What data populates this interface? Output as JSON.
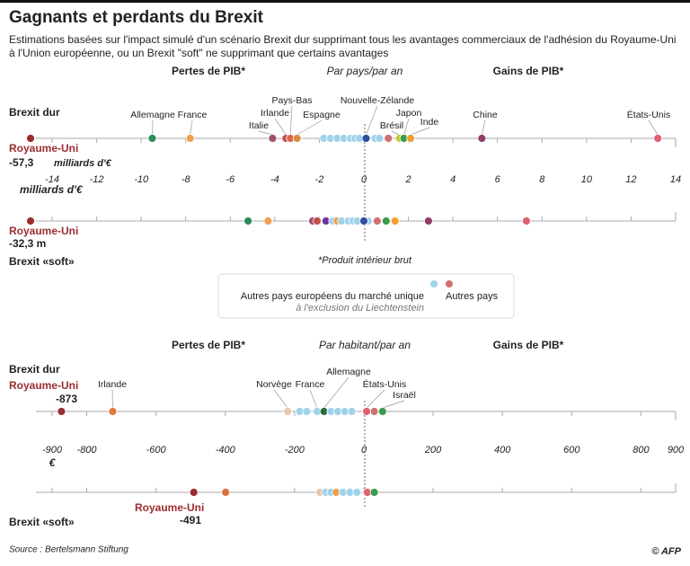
{
  "title": "Gagnants et perdants du Brexit",
  "subtitle_lines": [
    "Estimations basées sur l'impact simulé d'un scénario Brexit dur supprimant tous les avantages commerciaux de l'adhésion du Royaume-Uni",
    "à l'Union européenne, ou un Brexit \"soft\" ne supprimant que certains avantages"
  ],
  "footnote": "*Produit intérieur brut",
  "legend": {
    "eu_label": "Autres pays européens du marché unique",
    "eu_note": "à l'exclusion du Liechtenstein",
    "eu_color": "#9fd3ea",
    "other_label": "Autres pays",
    "other_color": "#d07070"
  },
  "source": "Source : Bertelsmann Stiftung",
  "credit": "© AFP",
  "chart_data": [
    {
      "type": "dot",
      "loss_label": "Pertes de PIB*",
      "period": "Par pays/par an",
      "gain_label": "Gains de PIB*",
      "x_label": "milliards d'€",
      "xlim": [
        -14,
        14
      ],
      "xticks": [
        -14,
        -12,
        -10,
        -8,
        -6,
        -4,
        -2,
        0,
        2,
        4,
        6,
        8,
        10,
        12,
        14
      ],
      "rows": [
        {
          "label": "Brexit dur",
          "uk": {
            "name": "Royaume-Uni",
            "value": -57.3,
            "value_label": "-57,3",
            "unit": "milliards d'€",
            "color": "#9b2d30"
          },
          "points": [
            {
              "name": "Allemagne",
              "value": -9.5,
              "color": "#2e8b57"
            },
            {
              "name": "France",
              "value": -7.8,
              "color": "#f0a050"
            },
            {
              "name": "Italie",
              "value": -4.1,
              "color": "#a0506e"
            },
            {
              "name": "Irlande",
              "value": -3.5,
              "color": "#c0504d"
            },
            {
              "name": "Pays-Bas",
              "value": -3.3,
              "color": "#d9664a"
            },
            {
              "name": "Espagne",
              "value": -3.0,
              "color": "#d98a40"
            },
            {
              "value": -1.8,
              "color": "#9fd3ea"
            },
            {
              "value": -1.5,
              "color": "#9fd3ea"
            },
            {
              "value": -1.2,
              "color": "#9fd3ea"
            },
            {
              "value": -0.9,
              "color": "#9fd3ea"
            },
            {
              "value": -0.6,
              "color": "#9fd3ea"
            },
            {
              "value": -0.4,
              "color": "#9fd3ea"
            },
            {
              "value": -0.2,
              "color": "#9fd3ea"
            },
            {
              "value": 0.5,
              "color": "#9fd3ea"
            },
            {
              "value": 0.7,
              "color": "#9fd3ea"
            },
            {
              "name": "Nouvelle-Zélande",
              "value": 0.1,
              "color": "#2f4f9f"
            },
            {
              "value": 1.1,
              "color": "#d07070"
            },
            {
              "name": "Brésil",
              "value": 1.6,
              "color": "#c8c83c"
            },
            {
              "name": "Japon",
              "value": 1.8,
              "color": "#3a9a4a"
            },
            {
              "name": "Inde",
              "value": 2.1,
              "color": "#f0a030"
            },
            {
              "name": "Chine",
              "value": 5.3,
              "color": "#8e3e6a"
            },
            {
              "name": "États-Unis",
              "value": 13.2,
              "color": "#e06070"
            }
          ]
        },
        {
          "label": "Brexit «soft»",
          "uk": {
            "name": "Royaume-Uni",
            "value": -32.3,
            "value_label": "-32,3 m",
            "color": "#9b2d30"
          },
          "points": [
            {
              "value": -5.2,
              "color": "#2e8b57"
            },
            {
              "value": -4.3,
              "color": "#f0a050"
            },
            {
              "value": -2.3,
              "color": "#a0506e"
            },
            {
              "value": -2.1,
              "color": "#c0504d"
            },
            {
              "value": -1.7,
              "color": "#7030a0"
            },
            {
              "value": -1.4,
              "color": "#9fd3ea"
            },
            {
              "value": -1.2,
              "color": "#f0a050"
            },
            {
              "value": -1.0,
              "color": "#9fd3ea"
            },
            {
              "value": -0.7,
              "color": "#9fd3ea"
            },
            {
              "value": -0.5,
              "color": "#9fd3ea"
            },
            {
              "value": -0.3,
              "color": "#9fd3ea"
            },
            {
              "value": 0.2,
              "color": "#9fd3ea"
            },
            {
              "value": 0.0,
              "color": "#2f4f9f"
            },
            {
              "value": 0.6,
              "color": "#d07070"
            },
            {
              "value": 1.0,
              "color": "#3a9a4a"
            },
            {
              "value": 1.4,
              "color": "#f0a030"
            },
            {
              "value": 2.9,
              "color": "#8e3e6a"
            },
            {
              "value": 7.3,
              "color": "#e06070"
            }
          ]
        }
      ]
    },
    {
      "type": "dot",
      "loss_label": "Pertes de PIB*",
      "period": "Par habitant/par an",
      "gain_label": "Gains de PIB*",
      "x_label": "€",
      "xlim": [
        -900,
        900
      ],
      "xticks": [
        -900,
        -800,
        -600,
        -400,
        -200,
        0,
        200,
        400,
        600,
        800,
        900
      ],
      "rows": [
        {
          "label": "Brexit dur",
          "uk": {
            "name": "Royaume-Uni",
            "value": -873,
            "color": "#9b2d30"
          },
          "points": [
            {
              "name": "Irlande",
              "value": -725,
              "color": "#e07a40"
            },
            {
              "name": "Norvège",
              "value": -220,
              "color": "#e8c8b0"
            },
            {
              "value": -185,
              "color": "#9fd3ea"
            },
            {
              "value": -165,
              "color": "#9fd3ea"
            },
            {
              "name": "France",
              "value": -135,
              "color": "#9fd3ea"
            },
            {
              "name": "Allemagne",
              "value": -115,
              "color": "#2e6b3e"
            },
            {
              "value": -95,
              "color": "#9fd3ea"
            },
            {
              "value": -75,
              "color": "#9fd3ea"
            },
            {
              "value": -55,
              "color": "#9fd3ea"
            },
            {
              "value": -35,
              "color": "#9fd3ea"
            },
            {
              "value": 30,
              "color": "#d07070"
            },
            {
              "name": "États-Unis",
              "value": 8,
              "color": "#e06070"
            },
            {
              "name": "Israël",
              "value": 54,
              "color": "#3a9a4a"
            }
          ]
        },
        {
          "label": "Brexit «soft»",
          "uk": {
            "name": "Royaume-Uni",
            "value": -491,
            "color": "#9b2d30"
          },
          "points": [
            {
              "value": -399,
              "color": "#e07040"
            },
            {
              "value": -127,
              "color": "#e8c8b0"
            },
            {
              "value": -110,
              "color": "#9fd3ea"
            },
            {
              "value": -95,
              "color": "#9fd3ea"
            },
            {
              "value": -80,
              "color": "#f0a050"
            },
            {
              "value": -60,
              "color": "#9fd3ea"
            },
            {
              "value": -40,
              "color": "#9fd3ea"
            },
            {
              "value": -20,
              "color": "#9fd3ea"
            },
            {
              "value": 10,
              "color": "#e06070"
            },
            {
              "value": 30,
              "color": "#3a9a4a"
            }
          ]
        }
      ]
    }
  ]
}
